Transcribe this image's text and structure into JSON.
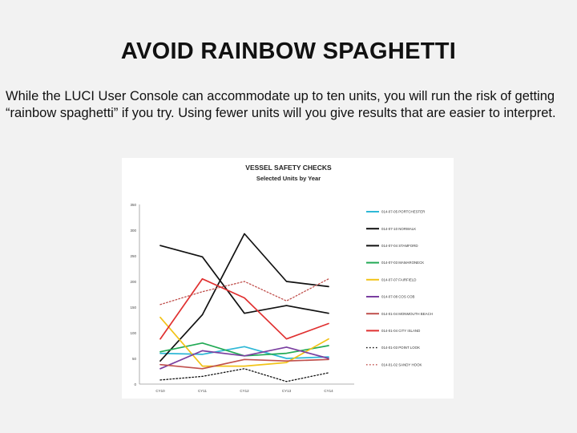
{
  "slide": {
    "title": "AVOID RAINBOW SPAGHETTI",
    "body": "While the LUCI User Console can accommodate up to ten units, you will run the risk of getting “rainbow spaghetti” if you try. Using fewer units will you give results that are easier to interpret."
  },
  "chart_data": {
    "type": "line",
    "title": "VESSEL SAFETY CHECKS",
    "subtitle": "Selected Units by Year",
    "categories": [
      "CY10",
      "CY11",
      "CY12",
      "CY13",
      "CY14"
    ],
    "ylim": [
      0,
      350
    ],
    "yticks": [
      0,
      50,
      100,
      150,
      200,
      250,
      300,
      350
    ],
    "grid": false,
    "legend_position": "right",
    "series": [
      {
        "name": "014-07-05 PORTCHESTER",
        "color": "#2eb8d6",
        "dash": "solid",
        "values": [
          60,
          58,
          73,
          50,
          53
        ]
      },
      {
        "name": "014-07-10 NORWALK",
        "color": "#111111",
        "dash": "solid",
        "values": [
          45,
          135,
          293,
          200,
          190
        ]
      },
      {
        "name": "014-07-04 STAMFORD",
        "color": "#111111",
        "dash": "solid",
        "values": [
          270,
          248,
          138,
          153,
          138
        ]
      },
      {
        "name": "014-07-03 MAMARONECK",
        "color": "#22aa55",
        "dash": "solid",
        "values": [
          63,
          80,
          55,
          60,
          75
        ]
      },
      {
        "name": "014-07-07 FAIRFIELD",
        "color": "#f2c318",
        "dash": "solid",
        "values": [
          130,
          35,
          35,
          42,
          88
        ]
      },
      {
        "name": "014-07-08 COS COB",
        "color": "#7a3fa0",
        "dash": "solid",
        "values": [
          30,
          65,
          55,
          72,
          50
        ]
      },
      {
        "name": "014-01-04 MONMOUTH BEACH",
        "color": "#c0504d",
        "dash": "solid",
        "values": [
          38,
          30,
          48,
          45,
          48
        ]
      },
      {
        "name": "014-01-04 CITY ISLAND",
        "color": "#e03030",
        "dash": "solid",
        "values": [
          88,
          205,
          168,
          88,
          118
        ]
      },
      {
        "name": "014-01-03 POINT LOOK",
        "color": "#111111",
        "dash": "dotted",
        "values": [
          8,
          15,
          30,
          5,
          22
        ]
      },
      {
        "name": "014-01-02 SANDY HOOK",
        "color": "#c0504d",
        "dash": "dotted",
        "values": [
          155,
          180,
          200,
          162,
          205
        ]
      }
    ]
  }
}
